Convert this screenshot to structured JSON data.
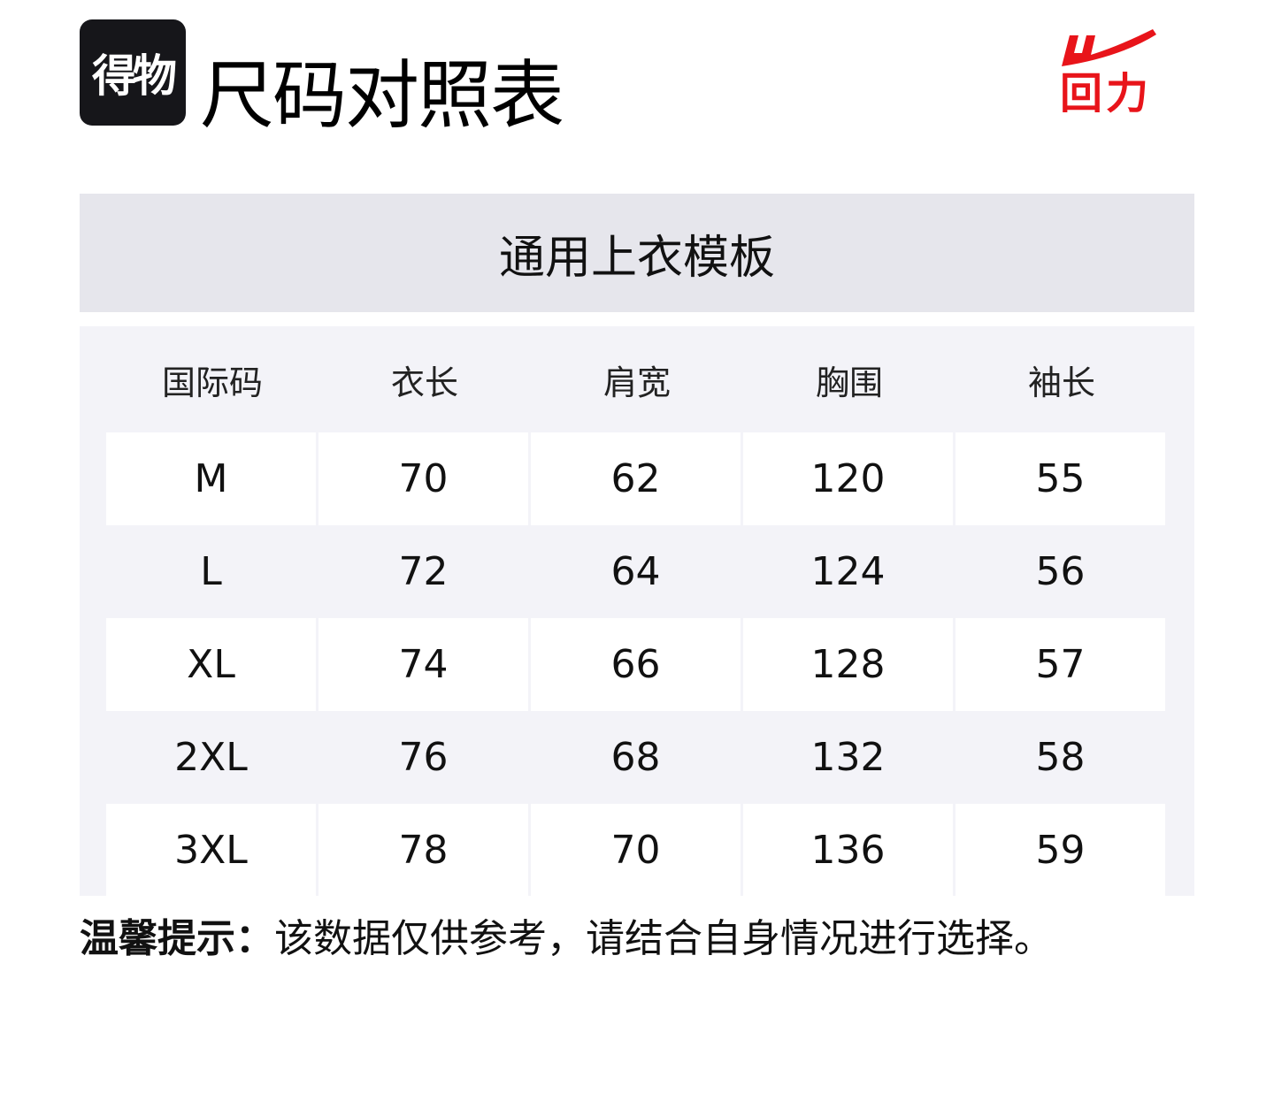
{
  "header": {
    "app_logo_text": "得物",
    "title": "尺码对照表",
    "brand_logo_text": "回力",
    "brand_color": "#e8141a"
  },
  "template_name": "通用上衣模板",
  "table": {
    "columns": [
      "国际码",
      "衣长",
      "肩宽",
      "胸围",
      "袖长"
    ],
    "rows": [
      [
        "M",
        "70",
        "62",
        "120",
        "55"
      ],
      [
        "L",
        "72",
        "64",
        "124",
        "56"
      ],
      [
        "XL",
        "74",
        "66",
        "128",
        "57"
      ],
      [
        "2XL",
        "76",
        "68",
        "132",
        "58"
      ],
      [
        "3XL",
        "78",
        "70",
        "136",
        "59"
      ]
    ]
  },
  "tip": {
    "label": "温馨提示：",
    "text": "该数据仅供参考，请结合自身情况进行选择。"
  }
}
